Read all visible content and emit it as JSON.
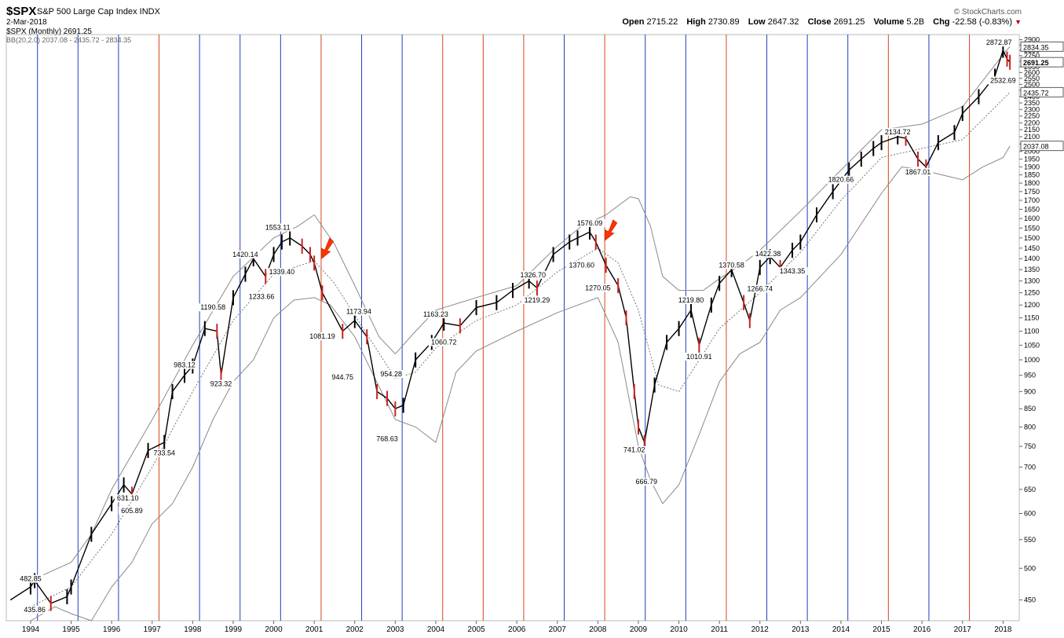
{
  "header": {
    "symbol": "$SPX",
    "description": "S&P 500 Large Cap Index  INDX",
    "date": "2-Mar-2018",
    "legend_price": "$SPX (Monthly) 2691.25",
    "legend_bb": "BB(20,2.0) 2037.08 - 2435.72 - 2834.35",
    "copyright": "© StockCharts.com",
    "open_label": "Open",
    "open": "2715.22",
    "high_label": "High",
    "high": "2730.89",
    "low_label": "Low",
    "low": "2647.32",
    "close_label": "Close",
    "close": "2691.25",
    "volume_label": "Volume",
    "volume": "5.2B",
    "chg_label": "Chg",
    "chg": "-22.58 (-0.83%)"
  },
  "colors": {
    "up": "#000000",
    "down": "#cc2222",
    "band": "#8a8a8a",
    "blue_line": "#1f3fbf",
    "red_line": "#d9441a",
    "arrow": "#ff3300"
  },
  "chart_data": {
    "type": "line",
    "title": "$SPX S&P 500 Large Cap Index INDX",
    "xlabel": "",
    "ylabel": "",
    "y_scale": "log",
    "ylim": [
      420,
      2950
    ],
    "xlim": [
      1993.4,
      2018.4
    ],
    "x_ticks": [
      "1994",
      "1995",
      "1996",
      "1997",
      "1998",
      "1999",
      "2000",
      "2001",
      "2002",
      "2003",
      "2004",
      "2005",
      "2006",
      "2007",
      "2008",
      "2009",
      "2010",
      "2011",
      "2012",
      "2013",
      "2014",
      "2015",
      "2016",
      "2017",
      "2018"
    ],
    "y_ticks": [
      450,
      500,
      550,
      600,
      650,
      700,
      750,
      800,
      850,
      900,
      950,
      1000,
      1050,
      1100,
      1150,
      1200,
      1250,
      1300,
      1350,
      1400,
      1450,
      1500,
      1550,
      1600,
      1650,
      1700,
      1750,
      1800,
      1850,
      1900,
      1950,
      2000,
      2050,
      2100,
      2150,
      2200,
      2250,
      2300,
      2350,
      2400,
      2450,
      2500,
      2550,
      2600,
      2650,
      2700,
      2750,
      2800,
      2850,
      2900
    ],
    "y_tick_labels": [
      "450",
      "500",
      "550",
      "600",
      "650",
      "700",
      "750",
      "800",
      "850",
      "900",
      "950",
      "1000",
      "1050",
      "1100",
      "1150",
      "1200",
      "1250",
      "1300",
      "1350",
      "1400",
      "1450",
      "1500",
      "1550",
      "1600",
      "1650",
      "1700",
      "1750",
      "1800",
      "1850",
      "1900",
      "1950",
      "2000",
      "2050",
      "2100",
      "2150",
      "2200",
      "2250",
      "2300",
      "2350",
      "2400",
      "2450",
      "2500",
      "2550",
      "2600",
      "2650",
      "2700",
      "2750",
      "2800",
      "2850",
      "2900"
    ],
    "series": [
      {
        "name": "$SPX (Monthly)",
        "x": [
          1993.5,
          1994.0,
          1994.1,
          1994.5,
          1994.9,
          1995.0,
          1995.5,
          1996.0,
          1996.3,
          1996.5,
          1996.9,
          1997.3,
          1997.5,
          1997.8,
          1998.0,
          1998.3,
          1998.6,
          1998.7,
          1999.0,
          1999.3,
          1999.5,
          1999.8,
          2000.0,
          2000.2,
          2000.4,
          2000.7,
          2000.9,
          2001.0,
          2001.2,
          2001.7,
          2002.0,
          2002.3,
          2002.55,
          2002.8,
          2003.0,
          2003.2,
          2003.5,
          2003.9,
          2004.2,
          2004.6,
          2005.0,
          2005.5,
          2005.9,
          2006.3,
          2006.5,
          2006.9,
          2007.3,
          2007.5,
          2007.8,
          2007.95,
          2008.2,
          2008.5,
          2008.7,
          2008.9,
          2009.0,
          2009.15,
          2009.4,
          2009.7,
          2010.0,
          2010.3,
          2010.5,
          2010.8,
          2011.0,
          2011.3,
          2011.6,
          2011.75,
          2012.0,
          2012.25,
          2012.5,
          2012.8,
          2013.0,
          2013.4,
          2013.8,
          2014.2,
          2014.5,
          2014.8,
          2015.0,
          2015.4,
          2015.6,
          2015.9,
          2016.1,
          2016.4,
          2016.8,
          2017.0,
          2017.4,
          2017.8,
          2018.0,
          2018.1,
          2018.17
        ],
        "y": [
          450,
          470,
          480,
          445,
          455,
          470,
          560,
          620,
          660,
          640,
          740,
          760,
          900,
          950,
          980,
          1110,
          1100,
          950,
          1230,
          1330,
          1400,
          1320,
          1420,
          1480,
          1500,
          1460,
          1420,
          1380,
          1250,
          1100,
          1140,
          1080,
          900,
          880,
          850,
          860,
          1000,
          1060,
          1130,
          1120,
          1190,
          1210,
          1260,
          1300,
          1270,
          1420,
          1480,
          1500,
          1530,
          1480,
          1370,
          1280,
          1150,
          900,
          800,
          760,
          920,
          1060,
          1110,
          1180,
          1050,
          1200,
          1290,
          1350,
          1210,
          1140,
          1360,
          1410,
          1360,
          1440,
          1480,
          1620,
          1750,
          1880,
          1950,
          2020,
          2060,
          2100,
          2090,
          1950,
          1900,
          2060,
          2130,
          2270,
          2400,
          2570,
          2800,
          2720,
          2691.25
        ]
      },
      {
        "name": "BB upper",
        "x": [
          1994.0,
          1995.0,
          1995.5,
          1996.0,
          1997.0,
          1998.0,
          1999.0,
          2000.0,
          2000.6,
          2001.0,
          2001.5,
          2002.0,
          2002.6,
          2003.0,
          2003.5,
          2004.0,
          2005.0,
          2006.0,
          2007.0,
          2007.6,
          2008.2,
          2008.8,
          2009.0,
          2009.3,
          2009.6,
          2010.0,
          2010.6,
          2011.0,
          2011.6,
          2012.0,
          2013.0,
          2014.0,
          2015.0,
          2016.0,
          2017.0,
          2018.0,
          2018.17
        ],
        "y": [
          480,
          510,
          560,
          650,
          820,
          1050,
          1320,
          1500,
          1560,
          1620,
          1470,
          1280,
          1080,
          1020,
          1100,
          1180,
          1230,
          1280,
          1460,
          1560,
          1620,
          1720,
          1710,
          1560,
          1320,
          1260,
          1260,
          1310,
          1380,
          1440,
          1640,
          1880,
          2150,
          2190,
          2320,
          2760,
          2834.35
        ]
      },
      {
        "name": "BB middle",
        "x": [
          1994.0,
          1995.0,
          1996.0,
          1997.0,
          1998.0,
          1999.0,
          2000.0,
          2001.0,
          2001.5,
          2002.0,
          2003.0,
          2003.5,
          2004.0,
          2005.0,
          2006.0,
          2007.0,
          2008.0,
          2008.5,
          2009.0,
          2009.5,
          2010.0,
          2011.0,
          2012.0,
          2013.0,
          2014.0,
          2015.0,
          2016.0,
          2017.0,
          2018.0,
          2018.17
        ],
        "y": [
          440,
          470,
          560,
          700,
          900,
          1140,
          1330,
          1390,
          1290,
          1160,
          940,
          960,
          1040,
          1140,
          1200,
          1340,
          1450,
          1380,
          1180,
          920,
          900,
          1110,
          1250,
          1430,
          1700,
          1960,
          2020,
          2080,
          2380,
          2435.72
        ]
      },
      {
        "name": "BB lower",
        "x": [
          1994.0,
          1994.6,
          1995.0,
          1995.5,
          1996.0,
          1996.5,
          1997.0,
          1997.5,
          1998.0,
          1998.5,
          1999.0,
          1999.5,
          2000.0,
          2000.5,
          2001.0,
          2001.4,
          2002.0,
          2002.5,
          2003.0,
          2003.5,
          2004.0,
          2004.5,
          2005.0,
          2006.0,
          2007.0,
          2008.0,
          2008.5,
          2009.0,
          2009.3,
          2009.6,
          2010.0,
          2010.5,
          2011.0,
          2011.5,
          2012.0,
          2012.5,
          2013.0,
          2014.0,
          2015.0,
          2015.5,
          2016.0,
          2016.5,
          2017.0,
          2017.5,
          2018.0,
          2018.17
        ],
        "y": [
          420,
          440,
          430,
          420,
          470,
          510,
          580,
          620,
          700,
          820,
          930,
          1000,
          1150,
          1220,
          1230,
          1200,
          1080,
          940,
          820,
          800,
          760,
          960,
          1030,
          1100,
          1170,
          1230,
          1060,
          750,
          670,
          620,
          660,
          780,
          930,
          1020,
          1060,
          1180,
          1230,
          1420,
          1740,
          1900,
          1880,
          1850,
          1820,
          1900,
          1960,
          2037.08
        ]
      }
    ],
    "value_labels": [
      {
        "text": "482.85",
        "x": 1994.0,
        "y": 482.85
      },
      {
        "text": "435.86",
        "x": 1994.1,
        "y": 435.86
      },
      {
        "text": "631.10",
        "x": 1996.4,
        "y": 631.1
      },
      {
        "text": "605.89",
        "x": 1996.5,
        "y": 605.89
      },
      {
        "text": "733.54",
        "x": 1997.3,
        "y": 733.54
      },
      {
        "text": "983.12",
        "x": 1997.8,
        "y": 983.12
      },
      {
        "text": "1190.58",
        "x": 1998.5,
        "y": 1190.58
      },
      {
        "text": "923.32",
        "x": 1998.7,
        "y": 923.32
      },
      {
        "text": "1420.14",
        "x": 1999.3,
        "y": 1420.14
      },
      {
        "text": "1233.66",
        "x": 1999.7,
        "y": 1233.66
      },
      {
        "text": "1553.11",
        "x": 2000.1,
        "y": 1553.11
      },
      {
        "text": "1339.40",
        "x": 2000.2,
        "y": 1339.4
      },
      {
        "text": "1081.19",
        "x": 2001.2,
        "y": 1081.19
      },
      {
        "text": "1173.94",
        "x": 2002.1,
        "y": 1173.94
      },
      {
        "text": "944.75",
        "x": 2001.7,
        "y": 944.75
      },
      {
        "text": "954.28",
        "x": 2002.9,
        "y": 954.28
      },
      {
        "text": "768.63",
        "x": 2002.8,
        "y": 768.63
      },
      {
        "text": "1163.23",
        "x": 2004.0,
        "y": 1163.23
      },
      {
        "text": "1060.72",
        "x": 2004.2,
        "y": 1060.72
      },
      {
        "text": "1326.70",
        "x": 2006.4,
        "y": 1326.7
      },
      {
        "text": "1219.29",
        "x": 2006.5,
        "y": 1219.29
      },
      {
        "text": "1576.09",
        "x": 2007.8,
        "y": 1576.09
      },
      {
        "text": "1370.60",
        "x": 2007.6,
        "y": 1370.6
      },
      {
        "text": "1270.05",
        "x": 2008.0,
        "y": 1270.05
      },
      {
        "text": "741.02",
        "x": 2008.9,
        "y": 741.02
      },
      {
        "text": "666.79",
        "x": 2009.2,
        "y": 666.79
      },
      {
        "text": "1219.80",
        "x": 2010.3,
        "y": 1219.8
      },
      {
        "text": "1010.91",
        "x": 2010.5,
        "y": 1010.91
      },
      {
        "text": "1370.58",
        "x": 2011.3,
        "y": 1370.58
      },
      {
        "text": "1422.38",
        "x": 2012.2,
        "y": 1422.38
      },
      {
        "text": "1343.35",
        "x": 2012.8,
        "y": 1343.35
      },
      {
        "text": "1266.74",
        "x": 2012.0,
        "y": 1266.74
      },
      {
        "text": "1820.66",
        "x": 2014.0,
        "y": 1820.66
      },
      {
        "text": "2134.72",
        "x": 2015.4,
        "y": 2134.72
      },
      {
        "text": "1867.01",
        "x": 2015.9,
        "y": 1867.01
      },
      {
        "text": "2872.87",
        "x": 2017.9,
        "y": 2872.87
      },
      {
        "text": "2532.69",
        "x": 2018.0,
        "y": 2532.69
      }
    ],
    "right_tags": [
      {
        "text": "2834.35",
        "y": 2834.35
      },
      {
        "text": "2691.25",
        "y": 2691.25
      },
      {
        "text": "2435.72",
        "y": 2435.72
      },
      {
        "text": "2037.08",
        "y": 2037.08
      }
    ],
    "vertical_lines": [
      {
        "x": 1994.17,
        "color": "blue"
      },
      {
        "x": 1995.17,
        "color": "blue"
      },
      {
        "x": 1996.17,
        "color": "blue"
      },
      {
        "x": 1997.17,
        "color": "red"
      },
      {
        "x": 1998.17,
        "color": "blue"
      },
      {
        "x": 1999.17,
        "color": "blue"
      },
      {
        "x": 2000.17,
        "color": "blue"
      },
      {
        "x": 2001.17,
        "color": "red"
      },
      {
        "x": 2002.17,
        "color": "blue"
      },
      {
        "x": 2003.17,
        "color": "blue"
      },
      {
        "x": 2004.17,
        "color": "red"
      },
      {
        "x": 2005.17,
        "color": "red"
      },
      {
        "x": 2006.17,
        "color": "red"
      },
      {
        "x": 2007.17,
        "color": "blue"
      },
      {
        "x": 2008.17,
        "color": "red"
      },
      {
        "x": 2009.17,
        "color": "blue"
      },
      {
        "x": 2010.17,
        "color": "blue"
      },
      {
        "x": 2011.17,
        "color": "red"
      },
      {
        "x": 2012.17,
        "color": "blue"
      },
      {
        "x": 2013.17,
        "color": "blue"
      },
      {
        "x": 2014.17,
        "color": "blue"
      },
      {
        "x": 2015.17,
        "color": "red"
      },
      {
        "x": 2016.17,
        "color": "blue"
      },
      {
        "x": 2017.17,
        "color": "red"
      }
    ],
    "arrows": [
      {
        "x": 2001.3,
        "y": 1430
      },
      {
        "x": 2008.3,
        "y": 1520
      }
    ],
    "grid": false,
    "legend_position": "top-left"
  }
}
